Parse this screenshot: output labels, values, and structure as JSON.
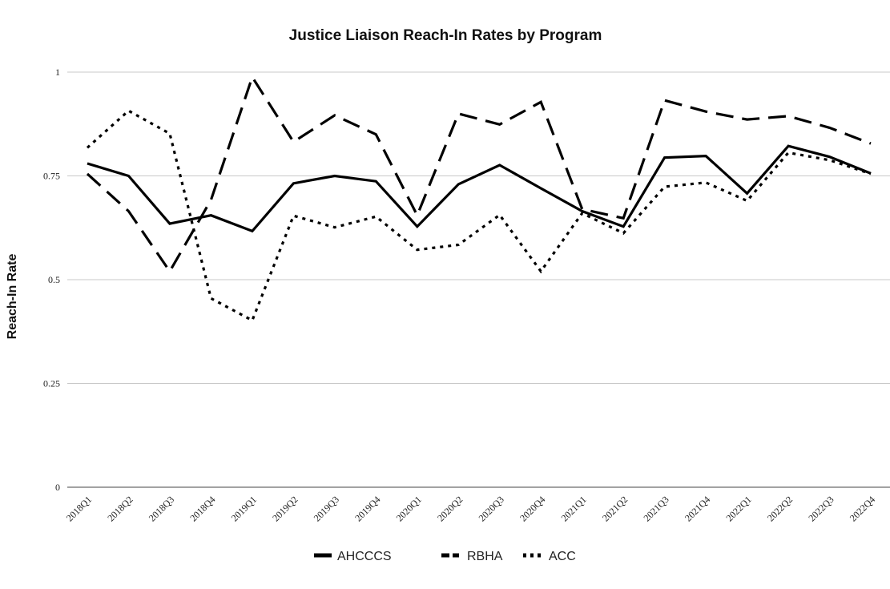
{
  "chart_data": {
    "type": "line",
    "title": "Justice Liaison Reach-In Rates by Program",
    "xlabel": "",
    "ylabel": "Reach-In Rate",
    "ylim": [
      0,
      1
    ],
    "yticks": [
      0,
      0.25,
      0.5,
      0.75,
      1
    ],
    "ytick_labels": [
      "0",
      "0.25",
      "0.5",
      "0.75",
      "1"
    ],
    "grid": true,
    "legend_position": "bottom",
    "categories": [
      "2018Q1",
      "2018Q2",
      "2018Q3",
      "2018Q4",
      "2019Q1",
      "2019Q2",
      "2019Q3",
      "2019Q4",
      "2020Q1",
      "2020Q2",
      "2020Q3",
      "2020Q4",
      "2021Q1",
      "2021Q2",
      "2021Q3",
      "2021Q4",
      "2022Q1",
      "2022Q2",
      "2022Q3",
      "2022Q4"
    ],
    "series": [
      {
        "name": "AHCCCS",
        "style": "solid",
        "color": "#000000",
        "values": [
          0.78,
          0.75,
          0.635,
          0.655,
          0.617,
          0.732,
          0.75,
          0.737,
          0.628,
          0.73,
          0.776,
          0.72,
          0.665,
          0.628,
          0.794,
          0.798,
          0.708,
          0.822,
          0.796,
          0.756
        ]
      },
      {
        "name": "RBHA",
        "style": "dashed",
        "color": "#000000",
        "values": [
          0.755,
          0.665,
          0.52,
          0.692,
          0.988,
          0.832,
          0.896,
          0.85,
          0.655,
          0.9,
          0.874,
          0.928,
          0.67,
          0.648,
          0.932,
          0.905,
          0.886,
          0.894,
          0.866,
          0.828
        ]
      },
      {
        "name": "ACC",
        "style": "dotted",
        "color": "#000000",
        "values": [
          0.818,
          0.907,
          0.852,
          0.455,
          0.402,
          0.654,
          0.626,
          0.652,
          0.572,
          0.584,
          0.656,
          0.52,
          0.66,
          0.612,
          0.724,
          0.734,
          0.69,
          0.806,
          0.788,
          0.755
        ]
      }
    ]
  }
}
